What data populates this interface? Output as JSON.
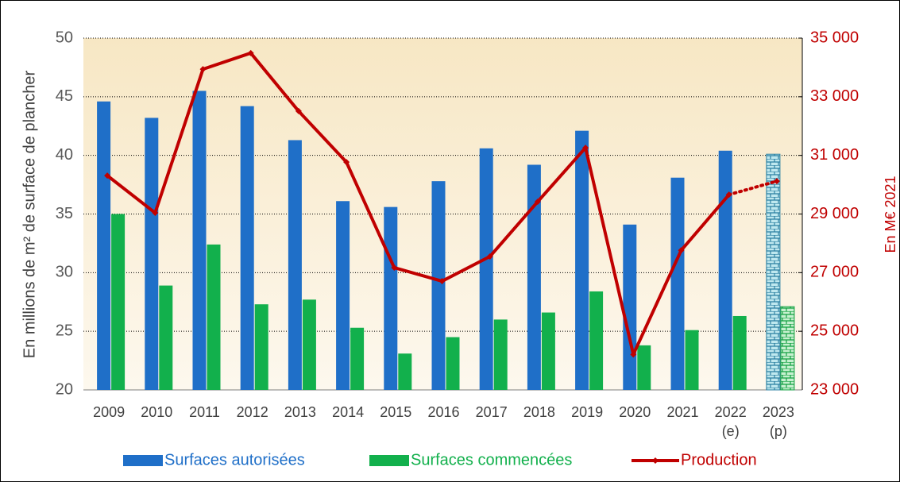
{
  "chart_data": {
    "type": "bar_line",
    "categories": [
      "2009",
      "2010",
      "2011",
      "2012",
      "2013",
      "2014",
      "2015",
      "2016",
      "2017",
      "2018",
      "2019",
      "2020",
      "2021",
      "2022",
      "2023"
    ],
    "category_notes": [
      null,
      null,
      null,
      null,
      null,
      null,
      null,
      null,
      null,
      null,
      null,
      null,
      null,
      "(e)",
      "(p)"
    ],
    "y_label": "En millions de m² de surface de plancher",
    "y2_label": "En M€ 2021",
    "ylim": [
      20,
      50
    ],
    "yticks": [
      20,
      25,
      30,
      35,
      40,
      45,
      50
    ],
    "y2lim": [
      23000,
      35000
    ],
    "y2ticks": [
      {
        "value": 23000,
        "label": "23 000"
      },
      {
        "value": 25000,
        "label": "25 000"
      },
      {
        "value": 27000,
        "label": "27 000"
      },
      {
        "value": 29000,
        "label": "29 000"
      },
      {
        "value": 31000,
        "label": "31 000"
      },
      {
        "value": 33000,
        "label": "33 000"
      },
      {
        "value": 35000,
        "label": "35 000"
      }
    ],
    "grid": true,
    "hatched_index": 14,
    "dotted_from_index": 13,
    "series": [
      {
        "name": "Surfaces autorisées",
        "color": "#1f6fc8",
        "kind": "bar",
        "values": [
          44.6,
          43.2,
          45.5,
          44.2,
          41.3,
          36.1,
          35.6,
          37.8,
          40.6,
          39.2,
          42.1,
          34.1,
          38.1,
          40.4,
          40.1
        ]
      },
      {
        "name": "Surfaces commencées",
        "color": "#12b04c",
        "kind": "bar",
        "values": [
          35.0,
          28.9,
          32.4,
          27.3,
          27.7,
          25.3,
          23.1,
          24.5,
          26.0,
          26.6,
          28.4,
          23.8,
          25.1,
          26.3,
          27.1
        ]
      },
      {
        "name": "Production",
        "color": "#c00000",
        "kind": "line",
        "axis": "y2",
        "values": [
          30310,
          29040,
          33940,
          34490,
          32510,
          30770,
          27170,
          26710,
          27550,
          29420,
          31260,
          24210,
          27760,
          29660,
          30120
        ]
      }
    ]
  }
}
